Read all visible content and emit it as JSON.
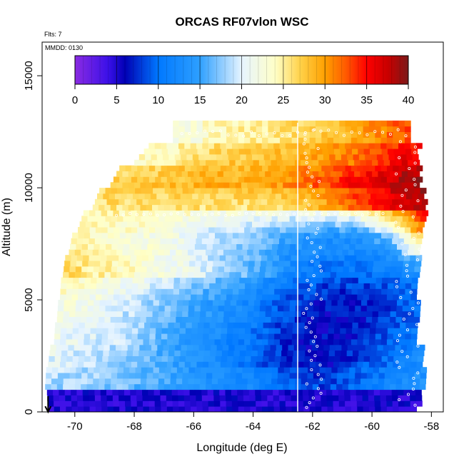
{
  "chart_data": {
    "type": "heatmap",
    "title": "ORCAS RF07vlon WSC",
    "subtitle_flts": "Flts: 7",
    "subtitle_mmdd": "MMDD: 0130",
    "xlabel": "Longitude (deg E)",
    "ylabel": "Altitude (m)",
    "xlim": [
      -71.1,
      -57.6
    ],
    "ylim": [
      0,
      16500
    ],
    "xticks": [
      -70,
      -68,
      -66,
      -64,
      -62,
      -60,
      -58
    ],
    "yticks": [
      0,
      5000,
      10000,
      15000
    ],
    "colorbar": {
      "min": 0,
      "max": 40,
      "ticks": [
        0,
        5,
        10,
        15,
        20,
        25,
        30,
        35,
        40
      ],
      "placement": "top"
    },
    "flight_marker_longitude": -62.5,
    "grid": false,
    "cells_by_altitude": [
      {
        "altitude_m": 0,
        "lon_start": -70.9,
        "lon_end": -58.5,
        "values": [
          5,
          5,
          5,
          5,
          5,
          5,
          5,
          5,
          5,
          5,
          5,
          5
        ]
      },
      {
        "altitude_m": 1000,
        "lon_start": -71.0,
        "lon_end": -58.2,
        "values": [
          18,
          18,
          17,
          16,
          14,
          13,
          12,
          9,
          8,
          10,
          12,
          14
        ]
      },
      {
        "altitude_m": 2000,
        "lon_start": -70.9,
        "lon_end": -58.4,
        "values": [
          20,
          19,
          18,
          16,
          14,
          12,
          10,
          7,
          6,
          8,
          10,
          13
        ]
      },
      {
        "altitude_m": 3000,
        "lon_start": -70.7,
        "lon_end": -58.5,
        "values": [
          21,
          20,
          19,
          17,
          14,
          12,
          10,
          7,
          6,
          7,
          9,
          11
        ]
      },
      {
        "altitude_m": 4000,
        "lon_start": -70.6,
        "lon_end": -58.5,
        "values": [
          22,
          21,
          19,
          17,
          15,
          13,
          11,
          8,
          6,
          6,
          8,
          10
        ]
      },
      {
        "altitude_m": 5000,
        "lon_start": -70.5,
        "lon_end": -58.5,
        "values": [
          23,
          22,
          20,
          18,
          16,
          14,
          12,
          9,
          7,
          7,
          8,
          10
        ]
      },
      {
        "altitude_m": 6000,
        "lon_start": -70.4,
        "lon_end": -58.5,
        "values": [
          27,
          25,
          24,
          22,
          21,
          18,
          16,
          12,
          10,
          10,
          11,
          13
        ]
      },
      {
        "altitude_m": 7000,
        "lon_start": -70.2,
        "lon_end": -58.4,
        "values": [
          25,
          24,
          23,
          22,
          20,
          18,
          16,
          13,
          12,
          12,
          14,
          23
        ]
      },
      {
        "altitude_m": 8000,
        "lon_start": -69.9,
        "lon_end": -58.3,
        "values": [
          24,
          24,
          23,
          22,
          20,
          19,
          18,
          16,
          15,
          16,
          22,
          32
        ]
      },
      {
        "altitude_m": 9000,
        "lon_start": -69.4,
        "lon_end": -58.3,
        "values": [
          26,
          26,
          26,
          26,
          26,
          26,
          26,
          27,
          30,
          33,
          36,
          38
        ]
      },
      {
        "altitude_m": 10000,
        "lon_start": -68.8,
        "lon_end": -58.4,
        "values": [
          27,
          28,
          28,
          29,
          29,
          29,
          30,
          32,
          34,
          36,
          38,
          39
        ]
      },
      {
        "altitude_m": 11000,
        "lon_start": -68.0,
        "lon_end": -58.5,
        "values": [
          24,
          25,
          26,
          27,
          28,
          28,
          29,
          30,
          31,
          33,
          35,
          37
        ]
      },
      {
        "altitude_m": 12000,
        "lon_start": -66.7,
        "lon_end": -58.7,
        "values": [
          22,
          23,
          24,
          25,
          25,
          26,
          27,
          28,
          29,
          30,
          32,
          33
        ]
      }
    ]
  }
}
